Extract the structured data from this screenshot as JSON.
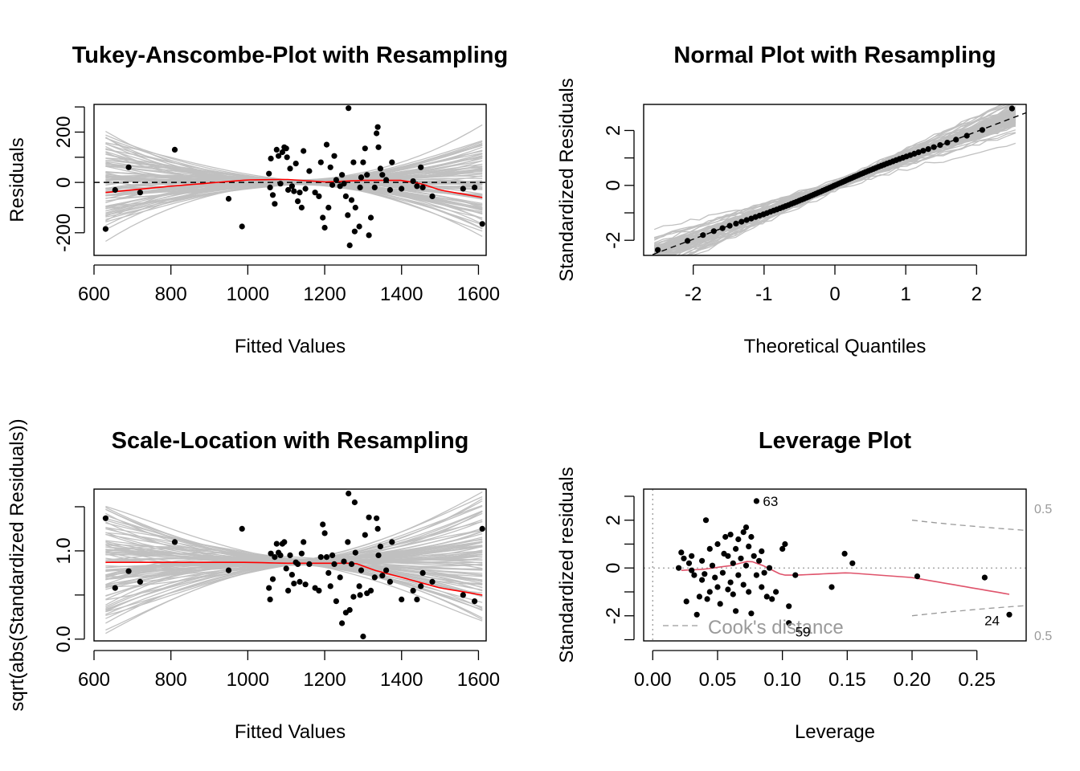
{
  "chart_data": [
    {
      "type": "scatter",
      "title": "Tukey-Anscombe-Plot with Resampling",
      "xlabel": "Fitted Values",
      "ylabel": "Residuals",
      "xlim": [
        600,
        1620
      ],
      "ylim": [
        -290,
        310
      ],
      "xticks": [
        600,
        800,
        1000,
        1200,
        1400,
        1600
      ],
      "xtick_labels": [
        "600",
        "800",
        "1000",
        "1200",
        "1400",
        "1600"
      ],
      "yticks": [
        -200,
        -100,
        0,
        100,
        200,
        300
      ],
      "ytick_labels": [
        "-200",
        "",
        "0",
        "",
        "200",
        ""
      ],
      "reference_line": {
        "y": 0,
        "style": "dashed",
        "color": "#000000"
      },
      "resample_band": {
        "color": "#c0c0c0",
        "x_range": [
          630,
          1610
        ]
      },
      "smoother": {
        "color": "#ff0000",
        "x": [
          630,
          800,
          1000,
          1100,
          1200,
          1300,
          1400,
          1450,
          1500,
          1610
        ],
        "y": [
          -40,
          -15,
          10,
          12,
          2,
          8,
          8,
          -5,
          -30,
          -60
        ]
      },
      "points": [
        [
          630,
          -185
        ],
        [
          655,
          -30
        ],
        [
          690,
          60
        ],
        [
          720,
          -40
        ],
        [
          810,
          130
        ],
        [
          950,
          -65
        ],
        [
          985,
          -175
        ],
        [
          1055,
          35
        ],
        [
          1058,
          -20
        ],
        [
          1060,
          95
        ],
        [
          1065,
          -50
        ],
        [
          1070,
          -85
        ],
        [
          1075,
          130
        ],
        [
          1080,
          105
        ],
        [
          1085,
          -5
        ],
        [
          1090,
          120
        ],
        [
          1095,
          140
        ],
        [
          1100,
          135
        ],
        [
          1102,
          100
        ],
        [
          1105,
          -30
        ],
        [
          1110,
          55
        ],
        [
          1115,
          -15
        ],
        [
          1120,
          -35
        ],
        [
          1125,
          75
        ],
        [
          1130,
          -75
        ],
        [
          1135,
          -40
        ],
        [
          1140,
          -100
        ],
        [
          1145,
          125
        ],
        [
          1150,
          -25
        ],
        [
          1160,
          45
        ],
        [
          1175,
          -40
        ],
        [
          1185,
          -55
        ],
        [
          1190,
          80
        ],
        [
          1195,
          -140
        ],
        [
          1200,
          -180
        ],
        [
          1205,
          150
        ],
        [
          1210,
          -100
        ],
        [
          1215,
          60
        ],
        [
          1220,
          -10
        ],
        [
          1225,
          105
        ],
        [
          1230,
          10
        ],
        [
          1240,
          -15
        ],
        [
          1245,
          30
        ],
        [
          1250,
          -5
        ],
        [
          1255,
          -55
        ],
        [
          1260,
          -130
        ],
        [
          1262,
          295
        ],
        [
          1265,
          -250
        ],
        [
          1270,
          -70
        ],
        [
          1275,
          80
        ],
        [
          1278,
          -195
        ],
        [
          1280,
          -100
        ],
        [
          1290,
          -175
        ],
        [
          1292,
          -20
        ],
        [
          1295,
          20
        ],
        [
          1300,
          80
        ],
        [
          1305,
          135
        ],
        [
          1310,
          30
        ],
        [
          1315,
          -210
        ],
        [
          1320,
          -140
        ],
        [
          1330,
          -20
        ],
        [
          1335,
          195
        ],
        [
          1338,
          220
        ],
        [
          1340,
          140
        ],
        [
          1345,
          55
        ],
        [
          1350,
          30
        ],
        [
          1360,
          10
        ],
        [
          1370,
          -30
        ],
        [
          1375,
          80
        ],
        [
          1400,
          -25
        ],
        [
          1430,
          5
        ],
        [
          1440,
          -15
        ],
        [
          1450,
          60
        ],
        [
          1455,
          -20
        ],
        [
          1480,
          -55
        ],
        [
          1560,
          -25
        ],
        [
          1590,
          -20
        ],
        [
          1610,
          -165
        ]
      ]
    },
    {
      "type": "scatter",
      "title": "Normal Plot with Resampling",
      "xlabel": "Theoretical Quantiles",
      "ylabel": "Standardized Residuals",
      "xlim": [
        -2.7,
        2.7
      ],
      "ylim": [
        -2.55,
        2.95
      ],
      "xticks": [
        -2,
        -1,
        0,
        1,
        2
      ],
      "xtick_labels": [
        "-2",
        "-1",
        "0",
        "1",
        "2"
      ],
      "yticks": [
        -2,
        -1,
        0,
        1,
        2
      ],
      "ytick_labels": [
        "-2",
        "",
        "0",
        "",
        "2"
      ],
      "reference_line": {
        "intercept": 0.0,
        "slope": 0.98,
        "style": "dashed",
        "color": "#000000"
      },
      "resample_band": {
        "color": "#c0c0c0",
        "x_range": [
          -2.55,
          2.55
        ]
      },
      "n_points": 80,
      "points_min_max": [
        [
          -2.5,
          -2.35
        ],
        [
          2.5,
          2.8
        ]
      ]
    },
    {
      "type": "scatter",
      "title": "Scale-Location with Resampling",
      "xlabel": "Fitted Values",
      "ylabel": "sqrt(abs(Standardized Residuals))",
      "xlim": [
        600,
        1620
      ],
      "ylim": [
        -0.02,
        1.7
      ],
      "xticks": [
        600,
        800,
        1000,
        1200,
        1400,
        1600
      ],
      "xtick_labels": [
        "600",
        "800",
        "1000",
        "1200",
        "1400",
        "1600"
      ],
      "yticks": [
        0.0,
        0.5,
        1.0,
        1.5
      ],
      "ytick_labels": [
        "0.0",
        "",
        "1.0",
        ""
      ],
      "resample_band": {
        "color": "#c0c0c0",
        "x_range": [
          630,
          1610
        ]
      },
      "smoother": {
        "color": "#ff0000",
        "x": [
          630,
          800,
          1000,
          1100,
          1200,
          1280,
          1330,
          1400,
          1500,
          1610
        ],
        "y": [
          0.87,
          0.87,
          0.87,
          0.86,
          0.86,
          0.86,
          0.78,
          0.7,
          0.58,
          0.5
        ]
      },
      "points": [
        [
          630,
          1.37
        ],
        [
          655,
          0.58
        ],
        [
          690,
          0.77
        ],
        [
          720,
          0.65
        ],
        [
          810,
          1.1
        ],
        [
          950,
          0.78
        ],
        [
          985,
          1.25
        ],
        [
          1055,
          0.58
        ],
        [
          1058,
          0.45
        ],
        [
          1060,
          0.97
        ],
        [
          1065,
          0.68
        ],
        [
          1070,
          0.93
        ],
        [
          1075,
          1.08
        ],
        [
          1080,
          0.98
        ],
        [
          1085,
          0.95
        ],
        [
          1090,
          1.08
        ],
        [
          1095,
          1.1
        ],
        [
          1100,
          0.8
        ],
        [
          1105,
          0.55
        ],
        [
          1110,
          0.95
        ],
        [
          1115,
          0.73
        ],
        [
          1120,
          0.63
        ],
        [
          1125,
          0.87
        ],
        [
          1130,
          0.85
        ],
        [
          1135,
          0.65
        ],
        [
          1140,
          0.97
        ],
        [
          1145,
          1.1
        ],
        [
          1150,
          0.62
        ],
        [
          1160,
          0.85
        ],
        [
          1175,
          0.58
        ],
        [
          1185,
          0.55
        ],
        [
          1190,
          0.93
        ],
        [
          1195,
          1.3
        ],
        [
          1200,
          1.2
        ],
        [
          1205,
          0.93
        ],
        [
          1210,
          0.75
        ],
        [
          1215,
          0.6
        ],
        [
          1220,
          0.95
        ],
        [
          1225,
          0.85
        ],
        [
          1230,
          0.43
        ],
        [
          1240,
          0.7
        ],
        [
          1245,
          0.18
        ],
        [
          1250,
          0.88
        ],
        [
          1255,
          0.3
        ],
        [
          1260,
          1.1
        ],
        [
          1262,
          1.65
        ],
        [
          1265,
          0.33
        ],
        [
          1270,
          0.85
        ],
        [
          1275,
          0.48
        ],
        [
          1278,
          1.55
        ],
        [
          1280,
          0.98
        ],
        [
          1290,
          0.6
        ],
        [
          1292,
          0.5
        ],
        [
          1295,
          0.78
        ],
        [
          1300,
          0.03
        ],
        [
          1305,
          1.18
        ],
        [
          1310,
          0.52
        ],
        [
          1315,
          1.38
        ],
        [
          1320,
          0.55
        ],
        [
          1330,
          0.7
        ],
        [
          1335,
          1.37
        ],
        [
          1338,
          1.25
        ],
        [
          1340,
          0.95
        ],
        [
          1345,
          1.05
        ],
        [
          1350,
          0.72
        ],
        [
          1360,
          0.78
        ],
        [
          1370,
          0.65
        ],
        [
          1375,
          1.1
        ],
        [
          1400,
          0.45
        ],
        [
          1430,
          0.55
        ],
        [
          1440,
          0.45
        ],
        [
          1450,
          0.6
        ],
        [
          1455,
          0.75
        ],
        [
          1480,
          0.65
        ],
        [
          1560,
          0.5
        ],
        [
          1590,
          0.43
        ],
        [
          1610,
          1.25
        ]
      ]
    },
    {
      "type": "scatter",
      "title": "Leverage Plot",
      "xlabel": "Leverage",
      "ylabel": "Standardized residuals",
      "xlim": [
        -0.007,
        0.288
      ],
      "ylim": [
        -3.05,
        3.3
      ],
      "xticks": [
        0.0,
        0.05,
        0.1,
        0.15,
        0.2,
        0.25
      ],
      "xtick_labels": [
        "0.00",
        "0.05",
        "0.10",
        "0.15",
        "0.20",
        "0.25"
      ],
      "yticks": [
        -3,
        -2,
        -1,
        0,
        1,
        2,
        3
      ],
      "ytick_labels": [
        "",
        "-2",
        "",
        "0",
        "",
        "2",
        ""
      ],
      "smoother": {
        "color": "#df536b",
        "x": [
          0.022,
          0.04,
          0.06,
          0.075,
          0.085,
          0.1,
          0.11,
          0.15,
          0.2,
          0.275
        ],
        "y": [
          -0.1,
          -0.05,
          0.1,
          0.3,
          0.1,
          -0.3,
          -0.3,
          -0.2,
          -0.4,
          -1.1
        ]
      },
      "cooks_contour": {
        "label": "Cook's distance",
        "level_labels": [
          "0.5",
          "0.5"
        ],
        "color": "#9a9a9a"
      },
      "point_labels": [
        {
          "text": "63",
          "x": 0.08,
          "y": 2.8
        },
        {
          "text": "59",
          "x": 0.105,
          "y": -2.4
        },
        {
          "text": "24",
          "x": 0.275,
          "y": -1.95
        }
      ],
      "points": [
        [
          0.02,
          0.0
        ],
        [
          0.022,
          0.65
        ],
        [
          0.024,
          0.4
        ],
        [
          0.026,
          -1.4
        ],
        [
          0.028,
          0.2
        ],
        [
          0.03,
          0.5
        ],
        [
          0.03,
          -0.1
        ],
        [
          0.032,
          -0.3
        ],
        [
          0.034,
          -1.95
        ],
        [
          0.036,
          -1.2
        ],
        [
          0.038,
          0.3
        ],
        [
          0.038,
          -0.5
        ],
        [
          0.04,
          -0.25
        ],
        [
          0.041,
          2.0
        ],
        [
          0.042,
          -1.3
        ],
        [
          0.044,
          0.8
        ],
        [
          0.044,
          -1.0
        ],
        [
          0.046,
          0.1
        ],
        [
          0.048,
          -0.4
        ],
        [
          0.05,
          1.0
        ],
        [
          0.05,
          -0.8
        ],
        [
          0.052,
          -1.5
        ],
        [
          0.054,
          -0.2
        ],
        [
          0.055,
          0.6
        ],
        [
          0.056,
          1.3
        ],
        [
          0.058,
          -0.9
        ],
        [
          0.058,
          0.5
        ],
        [
          0.06,
          -0.6
        ],
        [
          0.06,
          1.4
        ],
        [
          0.062,
          0.2
        ],
        [
          0.062,
          -1.1
        ],
        [
          0.064,
          0.8
        ],
        [
          0.064,
          -1.8
        ],
        [
          0.066,
          1.2
        ],
        [
          0.066,
          -0.3
        ],
        [
          0.068,
          0.4
        ],
        [
          0.07,
          1.5
        ],
        [
          0.07,
          -0.7
        ],
        [
          0.072,
          0.1
        ],
        [
          0.072,
          1.7
        ],
        [
          0.074,
          -1.0
        ],
        [
          0.074,
          0.9
        ],
        [
          0.076,
          1.3
        ],
        [
          0.076,
          -1.9
        ],
        [
          0.078,
          0.5
        ],
        [
          0.08,
          2.8
        ],
        [
          0.08,
          -0.3
        ],
        [
          0.082,
          0.3
        ],
        [
          0.084,
          -0.8
        ],
        [
          0.084,
          0.7
        ],
        [
          0.086,
          -0.2
        ],
        [
          0.088,
          -1.2
        ],
        [
          0.09,
          0.0
        ],
        [
          0.092,
          -1.3
        ],
        [
          0.095,
          -1.0
        ],
        [
          0.1,
          0.8
        ],
        [
          0.102,
          1.0
        ],
        [
          0.105,
          -1.6
        ],
        [
          0.105,
          -2.3
        ],
        [
          0.11,
          -0.3
        ],
        [
          0.138,
          -0.8
        ],
        [
          0.148,
          0.6
        ],
        [
          0.154,
          0.2
        ],
        [
          0.204,
          -0.35
        ],
        [
          0.256,
          -0.4
        ],
        [
          0.275,
          -1.95
        ]
      ]
    }
  ]
}
